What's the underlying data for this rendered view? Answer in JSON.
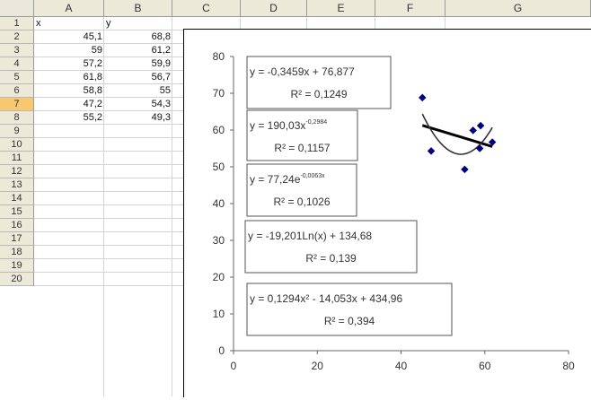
{
  "columns": [
    "A",
    "B",
    "C",
    "D",
    "E",
    "F",
    "G"
  ],
  "rows": [
    "1",
    "2",
    "3",
    "4",
    "5",
    "6",
    "7",
    "8",
    "9",
    "10",
    "11",
    "12",
    "13",
    "14",
    "15",
    "16",
    "17",
    "18",
    "19",
    "20"
  ],
  "active_row": "7",
  "table": {
    "headers": [
      "x",
      "y"
    ],
    "data": [
      [
        "45,1",
        "68,8"
      ],
      [
        "59",
        "61,2"
      ],
      [
        "57,2",
        "59,9"
      ],
      [
        "61,8",
        "56,7"
      ],
      [
        "58,8",
        "55"
      ],
      [
        "47,2",
        "54,3"
      ],
      [
        "55,2",
        "49,3"
      ]
    ]
  },
  "trendlines": [
    {
      "equation": "y = -0,3459x + 76,877",
      "r2": "R² = 0,1249"
    },
    {
      "equation_base": "y = 190,03x",
      "equation_exp": "-0,2984",
      "r2": "R² = 0,1157"
    },
    {
      "equation_base": "y = 77,24e",
      "equation_exp": "-0,0063x",
      "r2": "R² = 0,1026"
    },
    {
      "equation": "y = -19,201Ln(x) + 134,68",
      "r2": "R² = 0,139"
    },
    {
      "equation": "y = 0,1294x² - 14,053x + 434,96",
      "r2": "R² = 0,394"
    }
  ],
  "chart_data": {
    "type": "scatter",
    "x": [
      45.1,
      59,
      57.2,
      61.8,
      58.8,
      47.2,
      55.2
    ],
    "y": [
      68.8,
      61.2,
      59.9,
      56.7,
      55,
      54.3,
      49.3
    ],
    "xlim": [
      0,
      80
    ],
    "ylim": [
      0,
      80
    ],
    "x_ticks": [
      "0",
      "20",
      "40",
      "60",
      "80"
    ],
    "y_ticks": [
      "0",
      "10",
      "20",
      "30",
      "40",
      "50",
      "60",
      "70",
      "80"
    ],
    "marker_color": "#000080",
    "trend_color": "#000000",
    "linear": {
      "slope": -0.3459,
      "intercept": 76.877
    },
    "polynomial": {
      "a": 0.1294,
      "b": -14.053,
      "c": 434.96
    }
  }
}
